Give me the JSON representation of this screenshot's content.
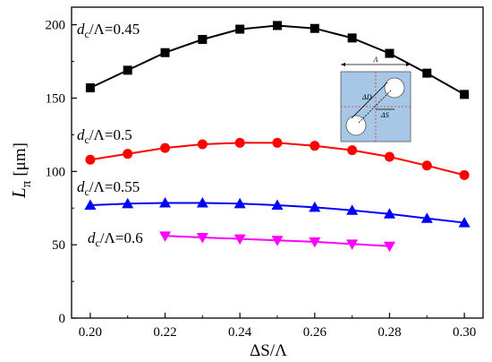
{
  "chart_data": {
    "type": "line",
    "xlabel": "ΔS/Λ",
    "ylabel_main": "L",
    "ylabel_sub": "π",
    "ylabel_unit": "[μm]",
    "xlim": [
      0.195,
      0.305
    ],
    "ylim": [
      0,
      212
    ],
    "x_ticks": [
      0.2,
      0.22,
      0.24,
      0.26,
      0.28,
      0.3
    ],
    "x_tick_labels": [
      "0.20",
      "0.22",
      "0.24",
      "0.26",
      "0.28",
      "0.30"
    ],
    "y_ticks": [
      0,
      50,
      100,
      150,
      200
    ],
    "y_tick_labels": [
      "0",
      "50",
      "100",
      "150",
      "200"
    ],
    "grid": false,
    "series": [
      {
        "label_italic": "d",
        "label_sub": "c",
        "label_rest": "/Λ=0.45",
        "marker": "square",
        "color": "#000000",
        "x": [
          0.2,
          0.21,
          0.22,
          0.23,
          0.24,
          0.25,
          0.26,
          0.27,
          0.28,
          0.29,
          0.3
        ],
        "y": [
          157,
          169,
          181,
          190,
          197,
          199.5,
          197.5,
          191,
          180.5,
          167,
          152.5
        ]
      },
      {
        "label_italic": "d",
        "label_sub": "c",
        "label_rest": "/Λ=0.5",
        "marker": "circle",
        "color": "#ff0000",
        "x": [
          0.2,
          0.21,
          0.22,
          0.23,
          0.24,
          0.25,
          0.26,
          0.27,
          0.28,
          0.29,
          0.3
        ],
        "y": [
          108,
          112,
          116,
          118.5,
          119.5,
          119.5,
          117.5,
          114.5,
          110,
          104,
          97.5
        ]
      },
      {
        "label_italic": "d",
        "label_sub": "c",
        "label_rest": "/Λ=0.55",
        "marker": "triangle-up",
        "color": "#0000ff",
        "x": [
          0.2,
          0.21,
          0.22,
          0.23,
          0.24,
          0.25,
          0.26,
          0.27,
          0.28,
          0.29,
          0.3
        ],
        "y": [
          77,
          78,
          78.5,
          78.5,
          78,
          77,
          75.5,
          73.5,
          71,
          68,
          65
        ]
      },
      {
        "label_italic": "d",
        "label_sub": "c",
        "label_rest": "/Λ=0.6",
        "marker": "triangle-down",
        "color": "#ff00ff",
        "x": [
          0.22,
          0.23,
          0.24,
          0.25,
          0.26,
          0.27,
          0.28
        ],
        "y": [
          56,
          55,
          54,
          53,
          52,
          50.5,
          49
        ]
      }
    ],
    "inset": {
      "fill": "#a6c8e6",
      "labels": [
        "Λ",
        "ΔD",
        "ΔS"
      ]
    }
  }
}
